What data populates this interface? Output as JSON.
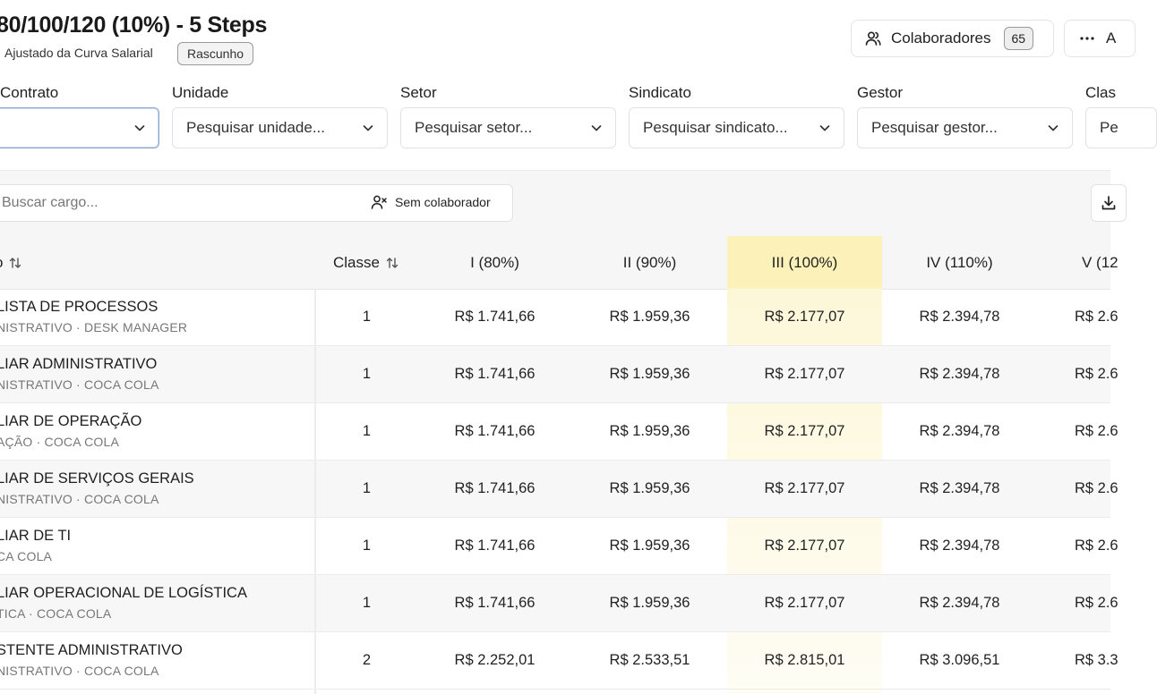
{
  "header": {
    "title": "80/100/120 (10%) - 5 Steps",
    "subtitle": "Ajustado da Curva Salarial",
    "status_badge": "Rascunho",
    "collaborators_label": "Colaboradores",
    "collaborators_count": "65",
    "more_label": "A"
  },
  "filters": [
    {
      "label": "Contrato",
      "placeholder": ""
    },
    {
      "label": "Unidade",
      "placeholder": "Pesquisar unidade..."
    },
    {
      "label": "Setor",
      "placeholder": "Pesquisar setor..."
    },
    {
      "label": "Sindicato",
      "placeholder": "Pesquisar sindicato..."
    },
    {
      "label": "Gestor",
      "placeholder": "Pesquisar gestor..."
    },
    {
      "label": "Clas",
      "placeholder": "Pe"
    }
  ],
  "toolbar": {
    "search_placeholder": "Buscar cargo...",
    "no_collaborator_label": "Sem colaborador"
  },
  "table": {
    "headers": {
      "cargo": "o",
      "classe": "Classe",
      "steps": [
        "I (80%)",
        "II (90%)",
        "III (100%)",
        "IV (110%)",
        "V (12"
      ]
    },
    "highlight_color": "#fcf1b8",
    "rows": [
      {
        "title": "LISTA DE PROCESSOS",
        "sub": "NISTRATIVO · DESK MANAGER",
        "classe": "1",
        "steps": [
          "R$ 1.741,66",
          "R$ 1.959,36",
          "R$ 2.177,07",
          "R$ 2.394,78",
          "R$ 2.6"
        ]
      },
      {
        "title": "LIAR ADMINISTRATIVO",
        "sub": "NISTRATIVO · COCA COLA",
        "classe": "1",
        "steps": [
          "R$ 1.741,66",
          "R$ 1.959,36",
          "R$ 2.177,07",
          "R$ 2.394,78",
          "R$ 2.6"
        ]
      },
      {
        "title": "LIAR DE OPERAÇÃO",
        "sub": "AÇÃO · COCA COLA",
        "classe": "1",
        "steps": [
          "R$ 1.741,66",
          "R$ 1.959,36",
          "R$ 2.177,07",
          "R$ 2.394,78",
          "R$ 2.6"
        ]
      },
      {
        "title": "LIAR DE SERVIÇOS GERAIS",
        "sub": "NISTRATIVO · COCA COLA",
        "classe": "1",
        "steps": [
          "R$ 1.741,66",
          "R$ 1.959,36",
          "R$ 2.177,07",
          "R$ 2.394,78",
          "R$ 2.6"
        ]
      },
      {
        "title": "LIAR DE TI",
        "sub": "CA COLA",
        "classe": "1",
        "steps": [
          "R$ 1.741,66",
          "R$ 1.959,36",
          "R$ 2.177,07",
          "R$ 2.394,78",
          "R$ 2.6"
        ]
      },
      {
        "title": "LIAR OPERACIONAL DE LOGÍSTICA",
        "sub": "TICA · COCA COLA",
        "classe": "1",
        "steps": [
          "R$ 1.741,66",
          "R$ 1.959,36",
          "R$ 2.177,07",
          "R$ 2.394,78",
          "R$ 2.6"
        ]
      },
      {
        "title": "STENTE ADMINISTRATIVO",
        "sub": "NISTRATIVO · COCA COLA",
        "classe": "2",
        "steps": [
          "R$ 2.252,01",
          "R$ 2.533,51",
          "R$ 2.815,01",
          "R$ 3.096,51",
          "R$ 3.3"
        ]
      }
    ]
  }
}
